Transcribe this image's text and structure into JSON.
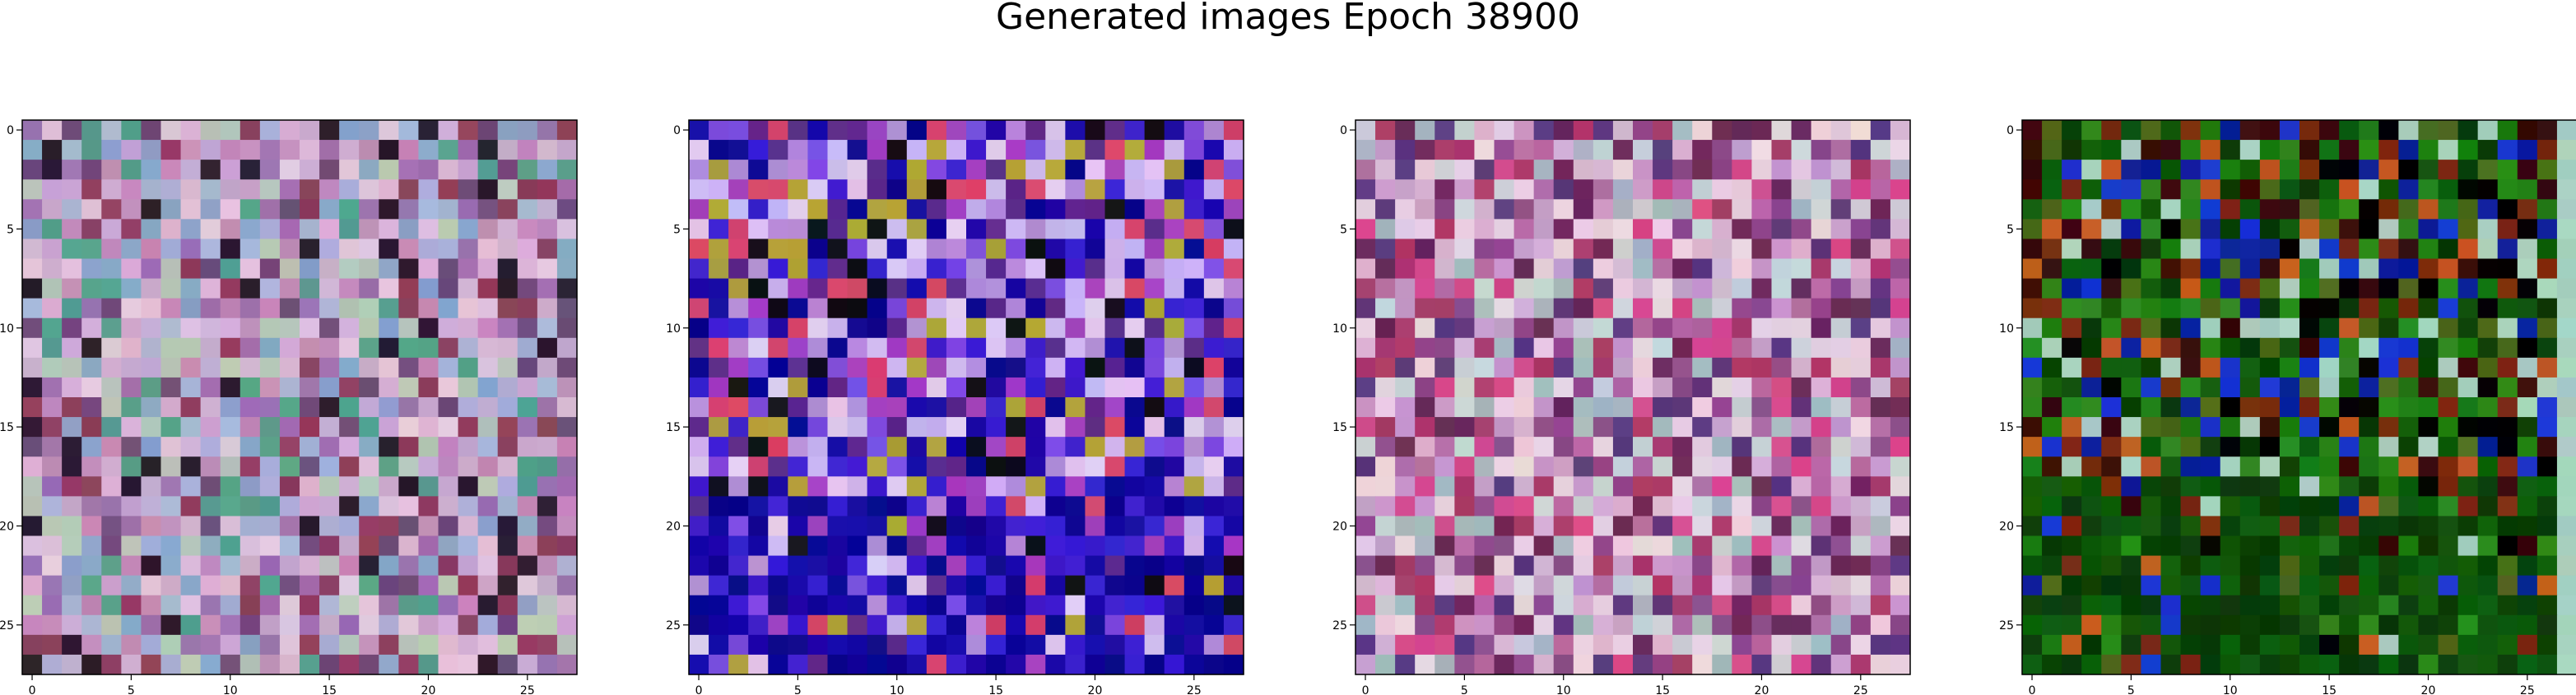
{
  "title": "Generated images Epoch 38900",
  "chart_data": [
    {
      "type": "heatmap",
      "title": "",
      "rows": 28,
      "cols": 28,
      "xlim": [
        -0.5,
        27.5
      ],
      "ylim": [
        27.5,
        -0.5
      ],
      "xticks": [
        0,
        5,
        10,
        15,
        20,
        25
      ],
      "yticks": [
        0,
        5,
        10,
        15,
        20,
        25
      ],
      "color_palette": [
        "#c7a8cf",
        "#a8b3d6",
        "#d7b1d4",
        "#9e6fb0",
        "#b7c7b8",
        "#e0c6dc",
        "#8aa4c8",
        "#c48ab8",
        "#6e4a7a",
        "#2b1c2f",
        "#8f3f5e",
        "#56a08c"
      ],
      "dominant_hue": "pastel mixed"
    },
    {
      "type": "heatmap",
      "title": "",
      "rows": 28,
      "cols": 28,
      "xlim": [
        -0.5,
        27.5
      ],
      "ylim": [
        27.5,
        -0.5
      ],
      "xticks": [
        0,
        5,
        10,
        15,
        20,
        25
      ],
      "yticks": [
        0,
        5,
        10,
        15,
        20,
        25
      ],
      "color_palette": [
        "#b48bd8",
        "#c9b4f0",
        "#7a4be0",
        "#3b1fd0",
        "#1a0aa8",
        "#0c0690",
        "#e0c8ee",
        "#a23fc0",
        "#5e2a8a",
        "#111018",
        "#b0a33a",
        "#d6446a"
      ],
      "dominant_hue": "violet to deep blue"
    },
    {
      "type": "heatmap",
      "title": "",
      "rows": 28,
      "cols": 28,
      "xlim": [
        -0.5,
        27.5
      ],
      "ylim": [
        27.5,
        -0.5
      ],
      "xticks": [
        0,
        5,
        10,
        15,
        20,
        25
      ],
      "yticks": [
        0,
        5,
        10,
        15,
        20,
        25
      ],
      "color_palette": [
        "#d6b3d3",
        "#c79ac9",
        "#e7cfe0",
        "#b56aa4",
        "#8f4a8c",
        "#c8d1d6",
        "#a6b8c0",
        "#d64a8c",
        "#6b2a5a",
        "#5c3a7e",
        "#e8d4de",
        "#aa3a6a"
      ],
      "dominant_hue": "pink and mauve"
    },
    {
      "type": "heatmap",
      "title": "",
      "rows": 28,
      "cols": 28,
      "xlim": [
        -0.5,
        27.5
      ],
      "ylim": [
        27.5,
        -0.5
      ],
      "xticks": [
        0,
        5,
        10,
        15,
        20,
        25
      ],
      "yticks": [
        0,
        5,
        10,
        15,
        20,
        25
      ],
      "color_palette": [
        "#1a7a12",
        "#0f5a0b",
        "#0a3d08",
        "#2c8a1c",
        "#0b1e9a",
        "#1835d0",
        "#3a0a0a",
        "#7a2a10",
        "#4d6a1a",
        "#000000",
        "#c45a20",
        "#a8d0c0"
      ],
      "dominant_hue": "green with blue patches"
    }
  ]
}
